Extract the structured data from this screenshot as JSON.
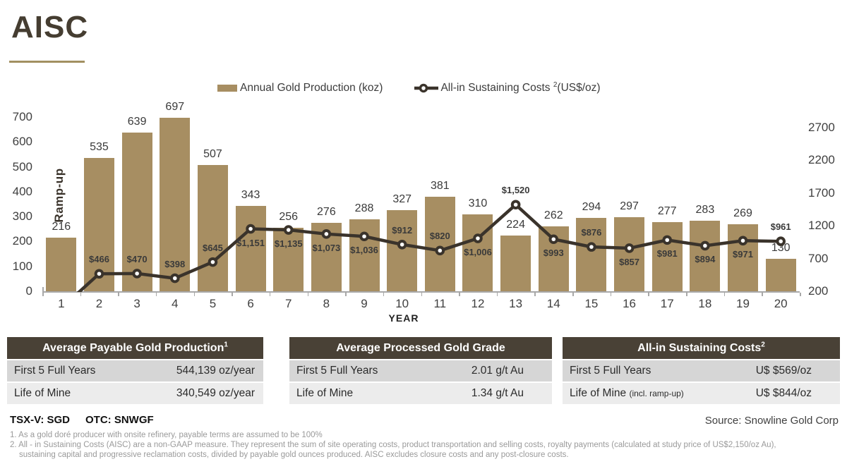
{
  "page": {
    "title": "AISC"
  },
  "legend": {
    "bars_label": "Annual Gold Production (koz)",
    "line_label_pre": "All-in Sustaining Costs ",
    "line_label_sup": "2",
    "line_label_post": "(US$/oz)"
  },
  "chart_data": {
    "type": "bar",
    "x_label": "YEAR",
    "categories": [
      1,
      2,
      3,
      4,
      5,
      6,
      7,
      8,
      9,
      10,
      11,
      12,
      13,
      14,
      15,
      16,
      17,
      18,
      19,
      20
    ],
    "series": [
      {
        "name": "Annual Gold Production (koz)",
        "type": "bar",
        "values": [
          216,
          535,
          639,
          697,
          507,
          343,
          256,
          276,
          288,
          327,
          381,
          310,
          224,
          262,
          294,
          297,
          277,
          283,
          269,
          130
        ]
      },
      {
        "name": "All-in Sustaining Costs (US$/oz)",
        "type": "line",
        "values": [
          null,
          466,
          470,
          398,
          645,
          1151,
          1135,
          1073,
          1036,
          912,
          820,
          1006,
          1520,
          993,
          876,
          857,
          981,
          894,
          971,
          961
        ],
        "point_labels": [
          "",
          "$466",
          "$470",
          "$398",
          "$645",
          "$1,151",
          "$1,135",
          "$1,073",
          "$1,036",
          "$912",
          "$820",
          "$1,006",
          "$1,520",
          "$993",
          "$876",
          "$857",
          "$981",
          "$894",
          "$971",
          "$961"
        ],
        "label_positions": [
          "",
          "above",
          "above",
          "above",
          "above",
          "below",
          "below",
          "below",
          "below",
          "above",
          "above",
          "below",
          "above",
          "below",
          "above",
          "below",
          "below",
          "below",
          "below",
          "above"
        ],
        "line_enters_from_below_axis": true
      }
    ],
    "annotations": {
      "ramp_up": "Ramp-up"
    },
    "y_left": {
      "ticks": [
        0,
        100,
        200,
        300,
        400,
        500,
        600,
        700
      ],
      "range": [
        0,
        700
      ]
    },
    "y_right": {
      "ticks": [
        200,
        700,
        1200,
        1700,
        2200,
        2700
      ],
      "range": [
        200,
        2700
      ]
    },
    "legend_position": "top",
    "grid": false
  },
  "tables": [
    {
      "header": "Average Payable Gold Production",
      "header_sup": "1",
      "rows": [
        {
          "label": "First 5 Full Years",
          "note": "",
          "value": "544,139 oz/year"
        },
        {
          "label": "Life of Mine",
          "note": "",
          "value": "340,549 oz/year"
        }
      ]
    },
    {
      "header": "Average Processed Gold Grade",
      "header_sup": "",
      "rows": [
        {
          "label": "First 5 Full Years",
          "note": "",
          "value": "2.01 g/t Au"
        },
        {
          "label": "Life of Mine",
          "note": "",
          "value": "1.34 g/t Au"
        }
      ]
    },
    {
      "header": "All-in Sustaining Costs",
      "header_sup": "2",
      "rows": [
        {
          "label": "First 5 Full Years",
          "note": "",
          "value": "U$ $569/oz"
        },
        {
          "label": "Life of Mine",
          "note": "(incl. ramp-up)",
          "value": "U$ $844/oz"
        }
      ]
    }
  ],
  "footer": {
    "ticker_1": "TSX-V: SGD",
    "ticker_2": "OTC: SNWGF",
    "source": "Source: Snowline Gold Corp",
    "footnote_1": "1. As a gold doré producer with onsite refinery, payable terms are assumed to be 100%",
    "footnote_2": "2. All - in Sustaining Costs (AISC) are a non-GAAP measure. They represent the sum of site operating costs, product transportation and selling costs, royalty payments (calculated at study price of US$2,150/oz Au), sustaining capital and progressive reclamation costs, divided by payable gold ounces produced. AISC excludes closure costs and any post-closure costs."
  },
  "colors": {
    "bar": "#a78e62",
    "line": "#3a332b",
    "title": "#453d31",
    "underline": "#a29061",
    "table_header_bg": "#494136",
    "row1_bg": "#d6d6d6",
    "row2_bg": "#ececec"
  }
}
